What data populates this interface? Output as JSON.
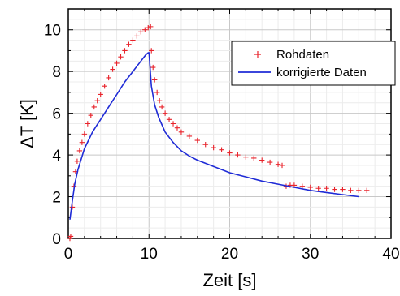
{
  "chart_data": {
    "type": "scatter",
    "xlabel": "Zeit [s]",
    "ylabel": "ΔT [K]",
    "xlim": [
      0,
      40
    ],
    "ylim": [
      0,
      11
    ],
    "x_ticks": [
      0,
      10,
      20,
      30,
      40
    ],
    "y_ticks": [
      0,
      2,
      4,
      6,
      8,
      10
    ],
    "grid": true,
    "legend": {
      "position": "top-right"
    },
    "series": [
      {
        "name": "Rohdaten",
        "mark": "plus",
        "color": "#e8232b",
        "x": [
          0.2,
          0.3,
          0.5,
          0.7,
          0.9,
          1.1,
          1.4,
          1.7,
          2.0,
          2.4,
          2.8,
          3.2,
          3.6,
          4.0,
          4.5,
          5.0,
          5.5,
          6.0,
          6.5,
          7.0,
          7.5,
          8.0,
          8.5,
          9.0,
          9.5,
          9.9,
          10.2,
          10.3,
          10.5,
          10.7,
          11.0,
          11.3,
          11.6,
          12.0,
          12.5,
          13.0,
          13.5,
          14.0,
          15.0,
          16.0,
          17.0,
          18.0,
          19.0,
          20.0,
          21.0,
          22.0,
          23.0,
          24.0,
          25.0,
          26.0,
          26.5,
          27.0,
          27.5,
          28.0,
          29.0,
          30.0,
          31.0,
          32.0,
          33.0,
          34.0,
          35.0,
          36.0,
          37.0
        ],
        "y": [
          0.0,
          0.1,
          1.5,
          2.5,
          3.2,
          3.7,
          4.2,
          4.6,
          5.0,
          5.5,
          5.9,
          6.3,
          6.6,
          6.9,
          7.3,
          7.7,
          8.1,
          8.4,
          8.7,
          9.0,
          9.3,
          9.5,
          9.7,
          9.9,
          10.0,
          10.1,
          10.15,
          9.0,
          8.2,
          7.6,
          7.0,
          6.6,
          6.3,
          6.0,
          5.7,
          5.5,
          5.3,
          5.1,
          4.9,
          4.7,
          4.5,
          4.35,
          4.25,
          4.1,
          4.0,
          3.9,
          3.85,
          3.75,
          3.65,
          3.55,
          3.5,
          2.5,
          2.55,
          2.55,
          2.5,
          2.45,
          2.4,
          2.4,
          2.35,
          2.35,
          2.3,
          2.3,
          2.3
        ]
      },
      {
        "name": "korrigierte Daten",
        "mark": "line",
        "color": "#1f2bd6",
        "x": [
          0.2,
          0.5,
          0.8,
          1.2,
          1.6,
          2.0,
          2.5,
          3.0,
          3.5,
          4.0,
          5.0,
          6.0,
          7.0,
          8.0,
          9.0,
          9.6,
          9.9,
          10.0,
          10.3,
          10.7,
          11.2,
          12.0,
          13.0,
          14.0,
          15.0,
          16.0,
          18.0,
          20.0,
          22.0,
          24.0,
          26.0,
          28.0,
          30.0,
          32.0,
          34.0,
          36.0
        ],
        "y": [
          0.9,
          1.8,
          2.6,
          3.3,
          3.8,
          4.3,
          4.7,
          5.1,
          5.4,
          5.7,
          6.3,
          6.9,
          7.5,
          8.0,
          8.5,
          8.8,
          8.9,
          8.9,
          7.3,
          6.4,
          5.8,
          5.1,
          4.6,
          4.2,
          3.95,
          3.75,
          3.45,
          3.15,
          2.95,
          2.75,
          2.6,
          2.45,
          2.3,
          2.2,
          2.1,
          2.0
        ]
      }
    ]
  }
}
